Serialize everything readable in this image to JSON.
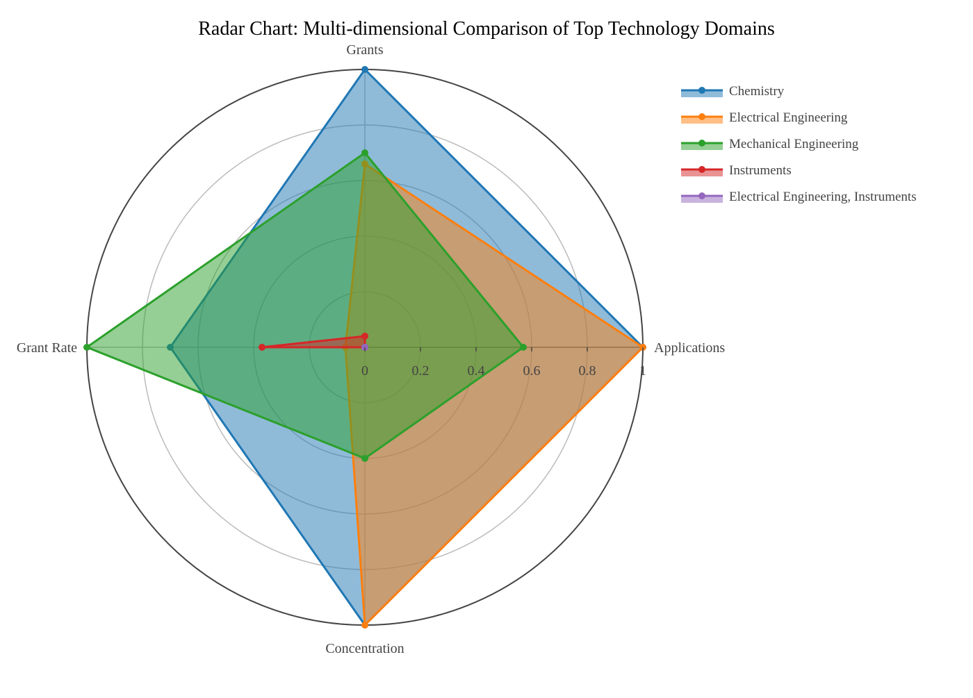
{
  "chart_data": {
    "type": "radar",
    "title": "Radar Chart: Multi-dimensional Comparison of Top Technology Domains",
    "axes": [
      "Applications",
      "Grants",
      "Grant Rate",
      "Concentration"
    ],
    "radial_range": [
      0,
      1
    ],
    "radial_ticks": [
      0,
      0.2,
      0.4,
      0.6,
      0.8,
      1
    ],
    "radial_tick_labels": [
      "0",
      "0.2",
      "0.4",
      "0.6",
      "0.8",
      "1"
    ],
    "grid": true,
    "legend_position": "top-right",
    "series": [
      {
        "name": "Chemistry",
        "color": "#1f77b4",
        "values": [
          1.0,
          1.0,
          0.7,
          1.0
        ]
      },
      {
        "name": "Electrical Engineering",
        "color": "#ff7f0e",
        "values": [
          1.0,
          0.66,
          0.07,
          1.0
        ]
      },
      {
        "name": "Mechanical Engineering",
        "color": "#2ca02c",
        "values": [
          0.57,
          0.7,
          1.0,
          0.4
        ]
      },
      {
        "name": "Instruments",
        "color": "#d62728",
        "values": [
          0.0,
          0.04,
          0.37,
          0.0
        ]
      },
      {
        "name": "Electrical Engineering, Instruments",
        "color": "#9467bd",
        "values": [
          0.0,
          0.0,
          0.0,
          0.0
        ]
      }
    ]
  }
}
